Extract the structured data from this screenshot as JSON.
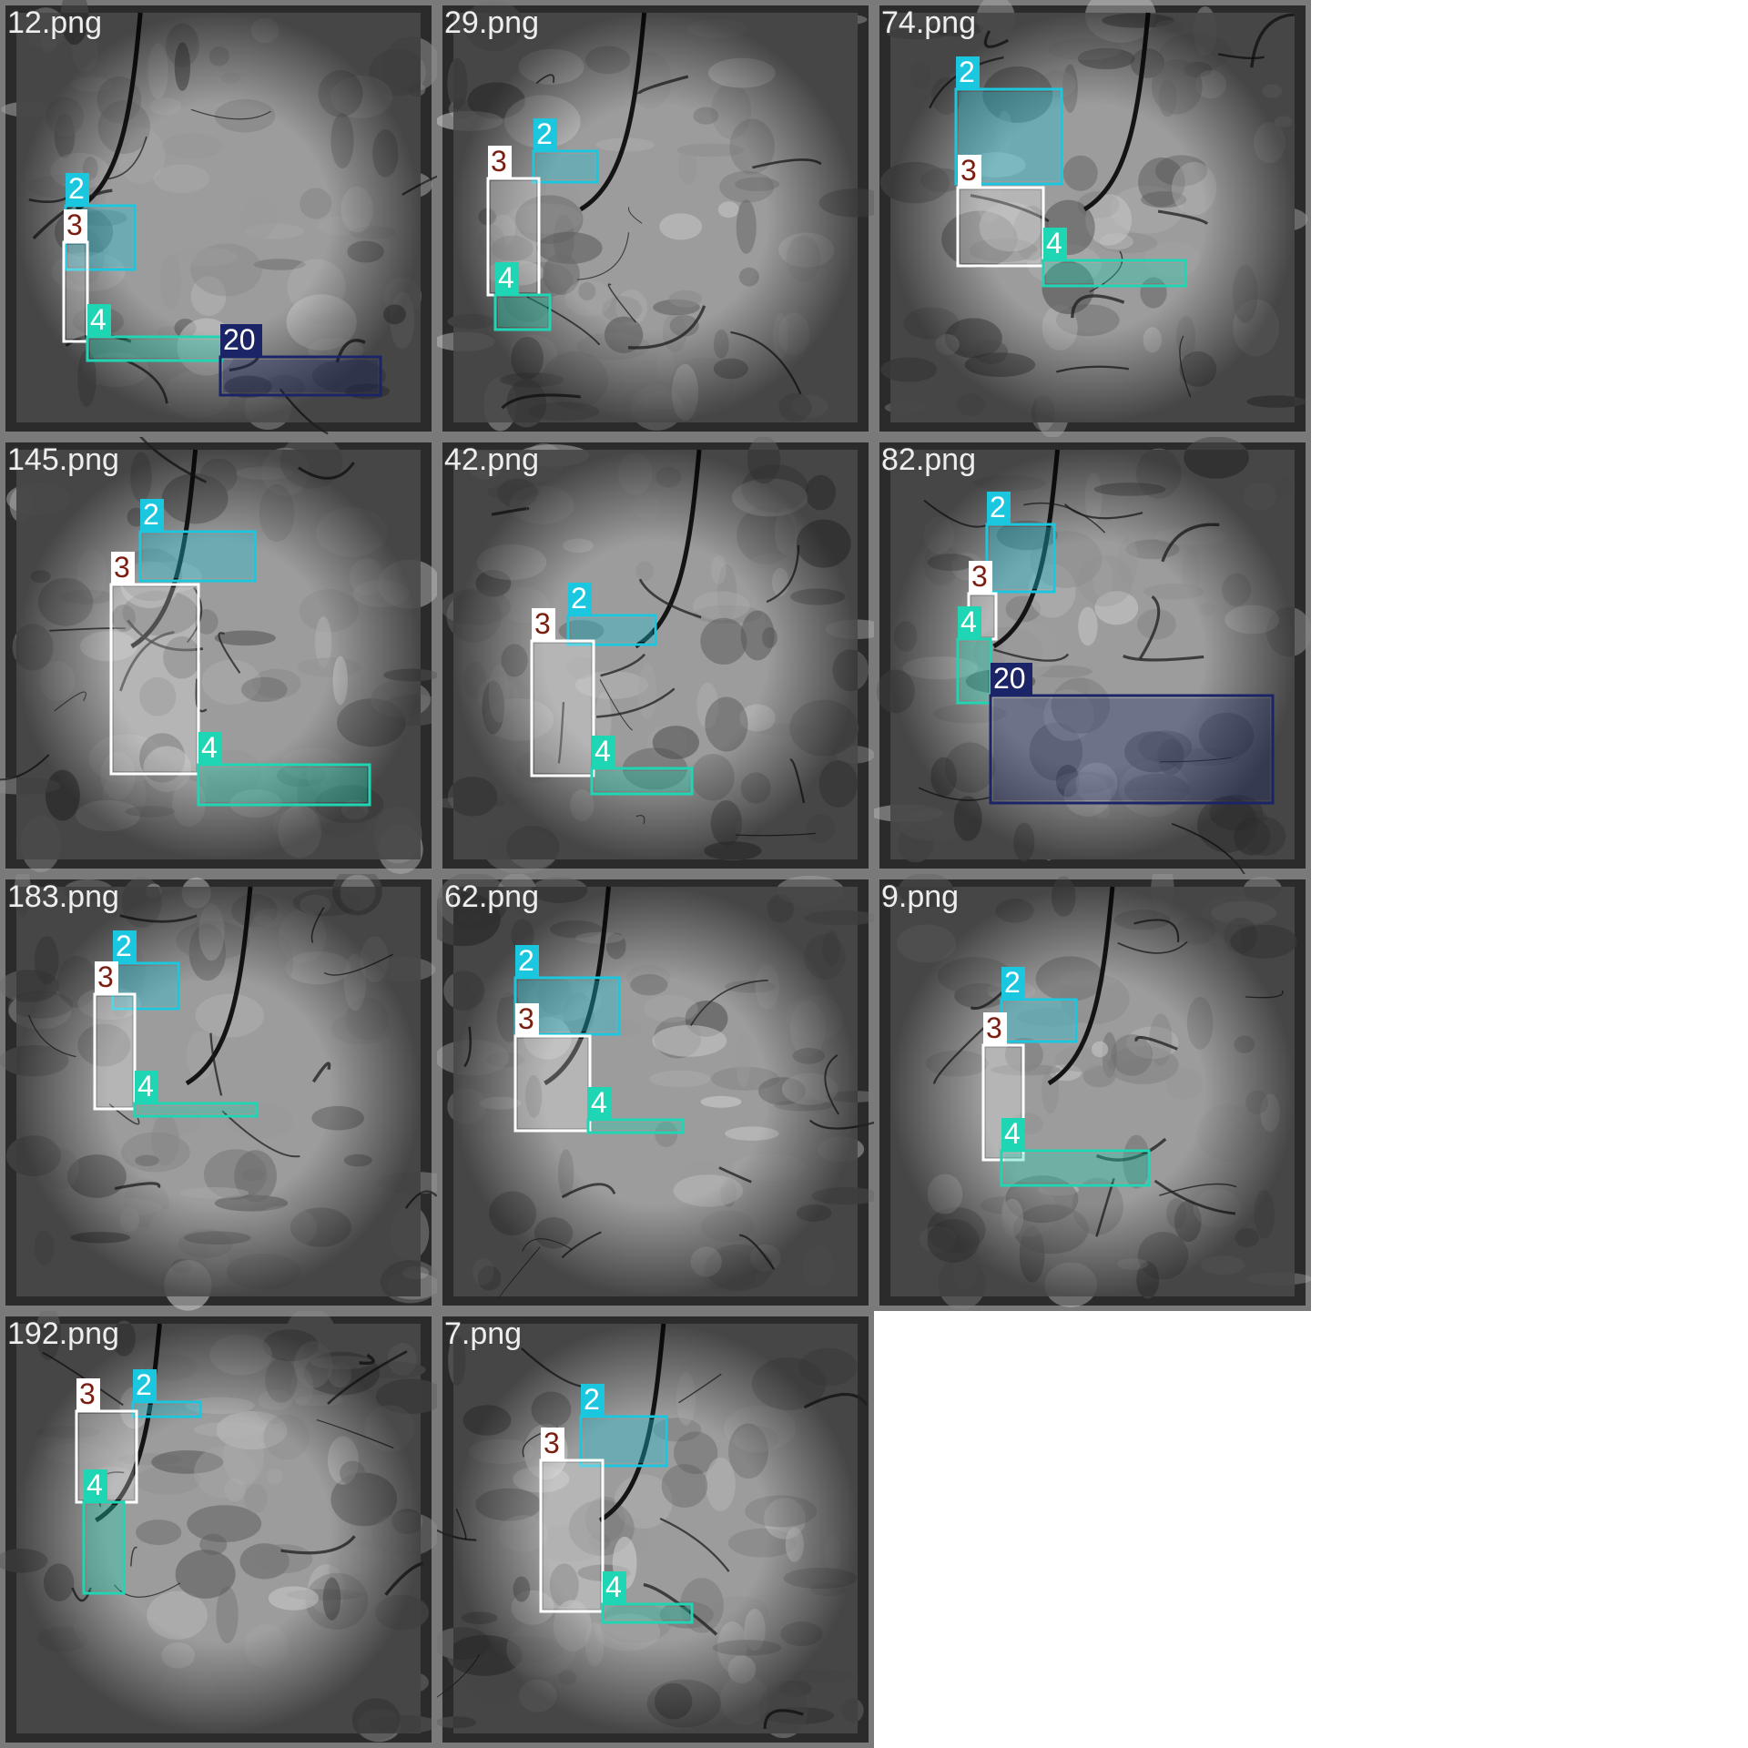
{
  "colors": {
    "class_2": "#1bc7de",
    "class_3": "#ffffff",
    "class_3_text": "#7a1e12",
    "class_4": "#1ed6b4",
    "class_20": "#1b2466"
  },
  "tiles": [
    {
      "filename": "12.png",
      "boxes": [
        {
          "label": "2",
          "cls": "class_2",
          "rect": [
            [
              72,
              226
            ],
            [
              148,
              296
            ]
          ]
        },
        {
          "label": "3",
          "cls": "class_3",
          "rect": [
            [
              70,
              266
            ],
            [
              96,
              375
            ]
          ]
        },
        {
          "label": "4",
          "cls": "class_4",
          "rect": [
            [
              96,
              370
            ],
            [
              244,
              396
            ]
          ]
        },
        {
          "label": "20",
          "cls": "class_20",
          "rect": [
            [
              242,
              392
            ],
            [
              418,
              434
            ]
          ]
        }
      ]
    },
    {
      "filename": "29.png",
      "boxes": [
        {
          "label": "2",
          "cls": "class_2",
          "rect": [
            [
              586,
              166
            ],
            [
              656,
              200
            ]
          ]
        },
        {
          "label": "3",
          "cls": "class_3",
          "rect": [
            [
              536,
              196
            ],
            [
              592,
              324
            ]
          ]
        },
        {
          "label": "4",
          "cls": "class_4",
          "rect": [
            [
              544,
              324
            ],
            [
              604,
              362
            ]
          ]
        }
      ]
    },
    {
      "filename": "74.png",
      "boxes": [
        {
          "label": "2",
          "cls": "class_2",
          "rect": [
            [
              1050,
              98
            ],
            [
              1166,
              202
            ]
          ]
        },
        {
          "label": "3",
          "cls": "class_3",
          "rect": [
            [
              1052,
              206
            ],
            [
              1146,
              292
            ]
          ]
        },
        {
          "label": "4",
          "cls": "class_4",
          "rect": [
            [
              1146,
              286
            ],
            [
              1302,
              314
            ]
          ]
        }
      ]
    },
    {
      "filename": "145.png",
      "boxes": [
        {
          "label": "2",
          "cls": "class_2",
          "rect": [
            [
              154,
              584
            ],
            [
              280,
              638
            ]
          ]
        },
        {
          "label": "3",
          "cls": "class_3",
          "rect": [
            [
              122,
              642
            ],
            [
              218,
              850
            ]
          ]
        },
        {
          "label": "4",
          "cls": "class_4",
          "rect": [
            [
              218,
              840
            ],
            [
              406,
              884
            ]
          ]
        }
      ]
    },
    {
      "filename": "42.png",
      "boxes": [
        {
          "label": "2",
          "cls": "class_2",
          "rect": [
            [
              624,
              676
            ],
            [
              720,
              708
            ]
          ]
        },
        {
          "label": "3",
          "cls": "class_3",
          "rect": [
            [
              584,
              704
            ],
            [
              652,
              852
            ]
          ]
        },
        {
          "label": "4",
          "cls": "class_4",
          "rect": [
            [
              650,
              844
            ],
            [
              760,
              872
            ]
          ]
        }
      ]
    },
    {
      "filename": "82.png",
      "boxes": [
        {
          "label": "2",
          "cls": "class_2",
          "rect": [
            [
              1084,
              576
            ],
            [
              1158,
              650
            ]
          ]
        },
        {
          "label": "3",
          "cls": "class_3",
          "rect": [
            [
              1064,
              652
            ],
            [
              1094,
              702
            ]
          ]
        },
        {
          "label": "4",
          "cls": "class_4",
          "rect": [
            [
              1052,
              702
            ],
            [
              1088,
              772
            ]
          ]
        },
        {
          "label": "20",
          "cls": "class_20",
          "rect": [
            [
              1088,
              764
            ],
            [
              1398,
              882
            ]
          ]
        }
      ]
    },
    {
      "filename": "183.png",
      "boxes": [
        {
          "label": "2",
          "cls": "class_2",
          "rect": [
            [
              124,
              1058
            ],
            [
              196,
              1108
            ]
          ]
        },
        {
          "label": "3",
          "cls": "class_3",
          "rect": [
            [
              104,
              1092
            ],
            [
              148,
              1218
            ]
          ]
        },
        {
          "label": "4",
          "cls": "class_4",
          "rect": [
            [
              148,
              1212
            ],
            [
              282,
              1226
            ]
          ]
        }
      ]
    },
    {
      "filename": "62.png",
      "boxes": [
        {
          "label": "2",
          "cls": "class_2",
          "rect": [
            [
              566,
              1074
            ],
            [
              680,
              1136
            ]
          ]
        },
        {
          "label": "3",
          "cls": "class_3",
          "rect": [
            [
              566,
              1138
            ],
            [
              648,
              1242
            ]
          ]
        },
        {
          "label": "4",
          "cls": "class_4",
          "rect": [
            [
              646,
              1230
            ],
            [
              750,
              1244
            ]
          ]
        }
      ]
    },
    {
      "filename": "9.png",
      "boxes": [
        {
          "label": "2",
          "cls": "class_2",
          "rect": [
            [
              1100,
              1098
            ],
            [
              1182,
              1144
            ]
          ]
        },
        {
          "label": "3",
          "cls": "class_3",
          "rect": [
            [
              1080,
              1148
            ],
            [
              1124,
              1274
            ]
          ]
        },
        {
          "label": "4",
          "cls": "class_4",
          "rect": [
            [
              1100,
              1264
            ],
            [
              1262,
              1302
            ]
          ]
        }
      ]
    },
    {
      "filename": "192.png",
      "boxes": [
        {
          "label": "2",
          "cls": "class_2",
          "rect": [
            [
              146,
              1540
            ],
            [
              220,
              1556
            ]
          ]
        },
        {
          "label": "3",
          "cls": "class_3",
          "rect": [
            [
              84,
              1550
            ],
            [
              150,
              1650
            ]
          ]
        },
        {
          "label": "4",
          "cls": "class_4",
          "rect": [
            [
              92,
              1650
            ],
            [
              136,
              1750
            ]
          ]
        }
      ]
    },
    {
      "filename": "7.png",
      "boxes": [
        {
          "label": "2",
          "cls": "class_2",
          "rect": [
            [
              638,
              1556
            ],
            [
              732,
              1610
            ]
          ]
        },
        {
          "label": "3",
          "cls": "class_3",
          "rect": [
            [
              594,
              1604
            ],
            [
              662,
              1770
            ]
          ]
        },
        {
          "label": "4",
          "cls": "class_4",
          "rect": [
            [
              662,
              1762
            ],
            [
              760,
              1782
            ]
          ]
        }
      ]
    }
  ]
}
